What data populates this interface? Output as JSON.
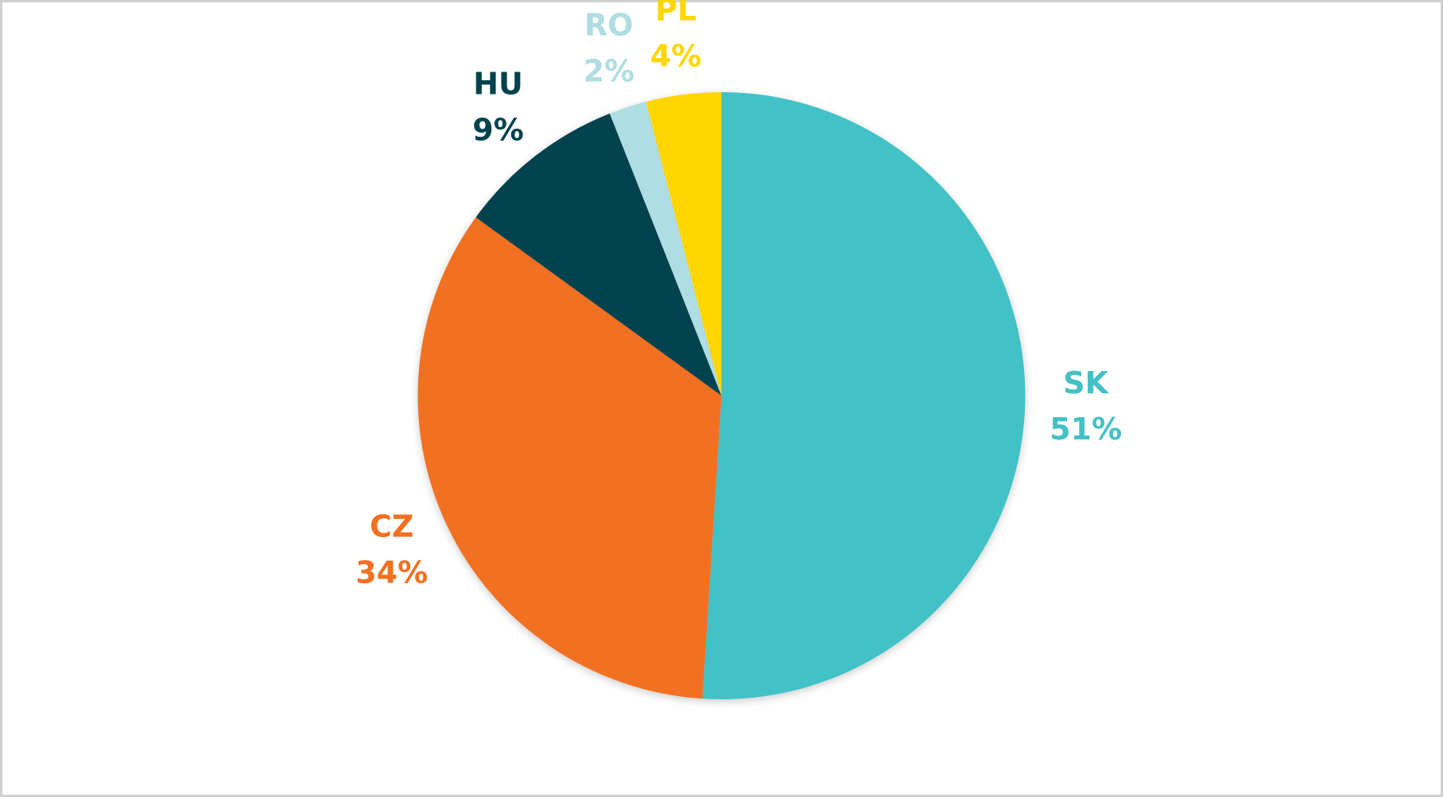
{
  "chart_data": {
    "type": "pie",
    "categories": [
      "SK",
      "CZ",
      "HU",
      "RO",
      "PL"
    ],
    "values": [
      51,
      34,
      9,
      2,
      4
    ],
    "value_labels": [
      "51%",
      "34%",
      "9%",
      "2%",
      "4%"
    ],
    "colors": [
      "#43c1c6",
      "#f27021",
      "#00434e",
      "#aedde3",
      "#ffd600"
    ]
  }
}
